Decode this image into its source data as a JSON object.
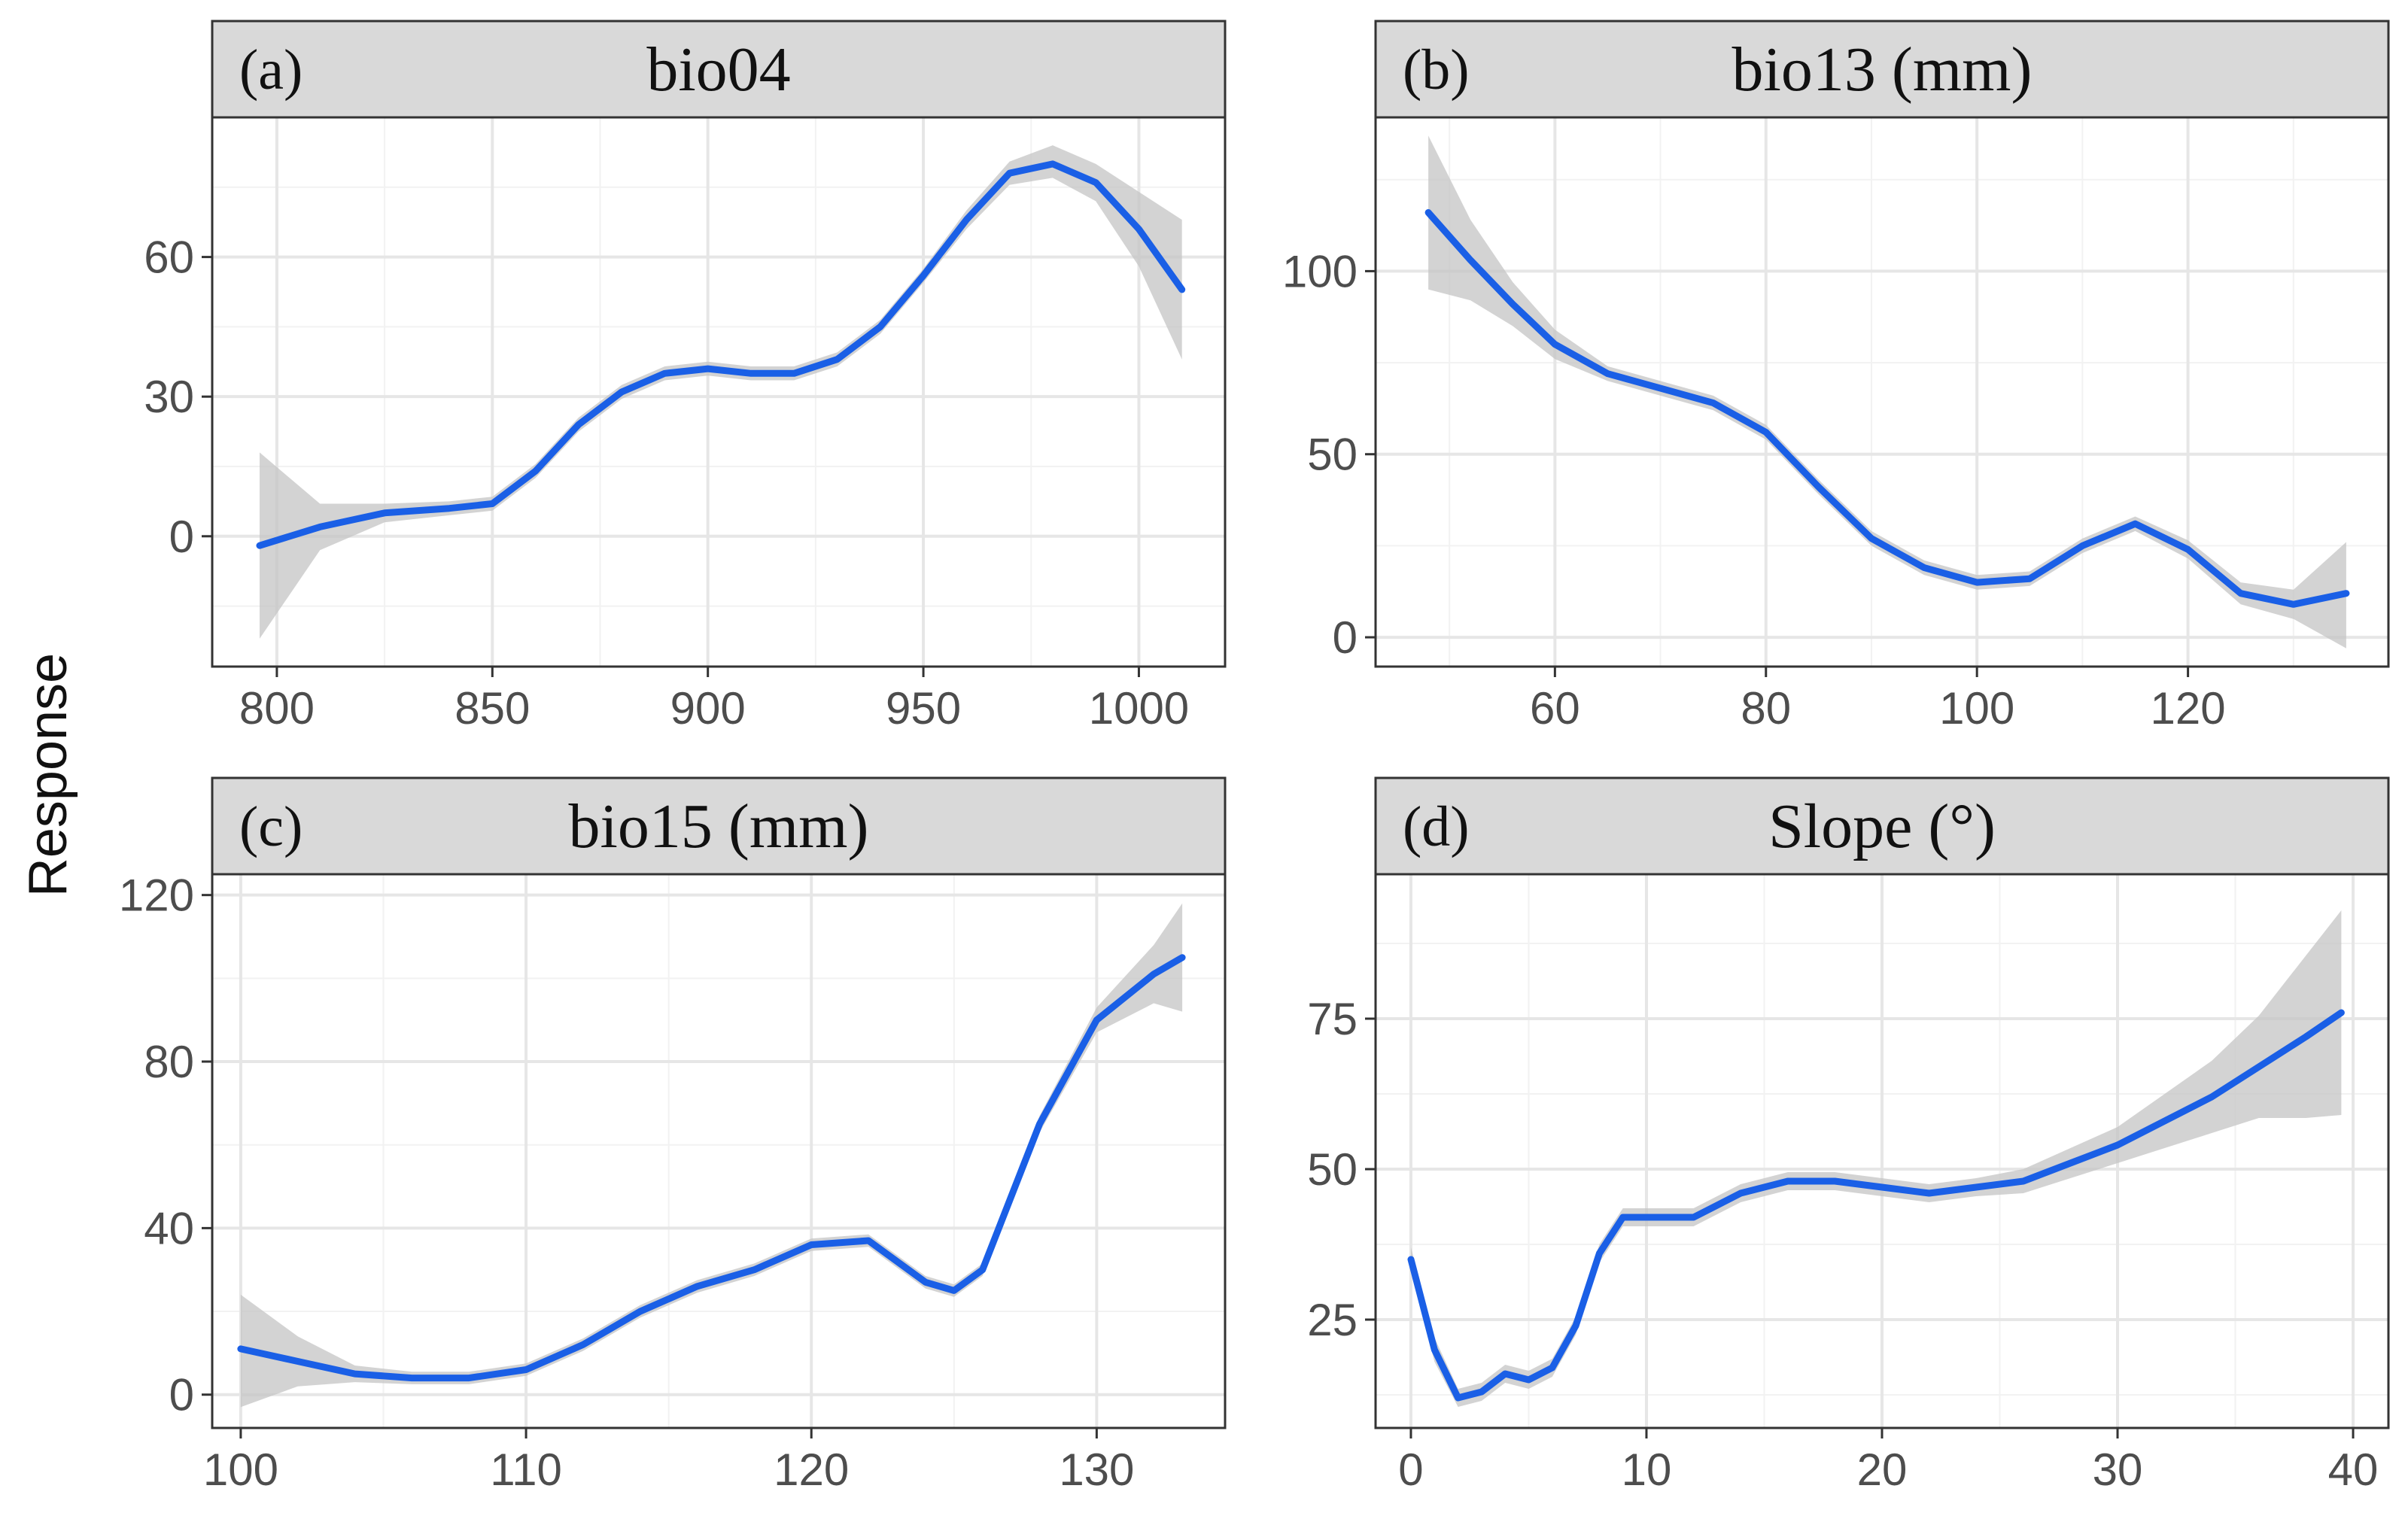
{
  "ylabel": "Response",
  "colors": {
    "line": "#1a5fe6",
    "ribbon": "#c4c4c4",
    "strip": "#d9d9d9",
    "grid_major": "#e6e6e6",
    "grid_minor": "#f2f2f2",
    "border": "#333333"
  },
  "chart_data": [
    {
      "type": "line",
      "panel": "(a)",
      "title": "bio04",
      "xlabel": "",
      "ylabel": "Response",
      "xlim": [
        785,
        1020
      ],
      "ylim": [
        -28,
        90
      ],
      "xticks": [
        800,
        850,
        900,
        950,
        1000
      ],
      "yticks": [
        0,
        30,
        60
      ],
      "grid": true,
      "series": [
        {
          "x": [
            796,
            810,
            825,
            840,
            850,
            860,
            870,
            880,
            890,
            900,
            910,
            920,
            930,
            940,
            950,
            960,
            970,
            980,
            990,
            1000,
            1010
          ],
          "y": [
            -2,
            2,
            5,
            6,
            7,
            14,
            24,
            31,
            35,
            36,
            35,
            35,
            38,
            45,
            56,
            68,
            78,
            80,
            76,
            66,
            53
          ],
          "lower": [
            -22,
            -3,
            3,
            4.5,
            5.5,
            12.5,
            22.5,
            29.5,
            33.5,
            34.5,
            33.5,
            33.5,
            36.5,
            43.5,
            54.5,
            66,
            75.5,
            77,
            72,
            58,
            38
          ],
          "upper": [
            18,
            7,
            7,
            7.5,
            8.5,
            15.5,
            25.5,
            32.5,
            36.5,
            37.5,
            36.5,
            36.5,
            39.5,
            46.5,
            57.5,
            70,
            80.5,
            84,
            80,
            74,
            68
          ]
        }
      ]
    },
    {
      "type": "line",
      "panel": "(b)",
      "title": "bio13 (mm)",
      "xlabel": "",
      "ylabel": "",
      "xlim": [
        43,
        139
      ],
      "ylim": [
        -8,
        142
      ],
      "xticks": [
        60,
        80,
        100,
        120
      ],
      "yticks": [
        0,
        50,
        100
      ],
      "grid": true,
      "series": [
        {
          "x": [
            48,
            52,
            56,
            60,
            65,
            70,
            75,
            80,
            85,
            90,
            95,
            100,
            105,
            110,
            115,
            120,
            125,
            130,
            135
          ],
          "y": [
            116,
            103,
            91,
            80,
            72,
            68,
            64,
            56,
            41,
            27,
            19,
            15,
            16,
            25,
            31,
            24,
            12,
            9,
            12
          ],
          "lower": [
            95,
            92,
            85,
            76,
            70,
            66,
            62,
            54,
            39,
            25,
            17,
            13,
            14,
            23,
            29,
            21.5,
            9,
            5,
            -3
          ],
          "upper": [
            137,
            114,
            97,
            84,
            74,
            70,
            66,
            58,
            43,
            29,
            21,
            17,
            18,
            27,
            33,
            26.5,
            15,
            13,
            26
          ]
        }
      ]
    },
    {
      "type": "line",
      "panel": "(c)",
      "title": "bio15 (mm)",
      "xlabel": "",
      "ylabel": "",
      "xlim": [
        99,
        134.5
      ],
      "ylim": [
        -8,
        125
      ],
      "xticks": [
        100,
        110,
        120,
        130
      ],
      "yticks": [
        0,
        40,
        80,
        120
      ],
      "grid": true,
      "series": [
        {
          "x": [
            100,
            102,
            104,
            106,
            108,
            110,
            112,
            114,
            116,
            118,
            120,
            122,
            124,
            125,
            126,
            128,
            130,
            132,
            133
          ],
          "y": [
            11,
            8,
            5,
            4,
            4,
            6,
            12,
            20,
            26,
            30,
            36,
            37,
            27,
            25,
            30,
            65,
            90,
            101,
            105
          ],
          "lower": [
            -3,
            2,
            3,
            2.5,
            2.5,
            4.5,
            10.5,
            18.5,
            24.5,
            28.5,
            34.5,
            35.5,
            25.5,
            23.5,
            28.5,
            63,
            87,
            94,
            92
          ],
          "upper": [
            24,
            14,
            7,
            5.5,
            5.5,
            7.5,
            13.5,
            21.5,
            27.5,
            31.5,
            37.5,
            38.5,
            28.5,
            26.5,
            31.5,
            67,
            93,
            108,
            118
          ]
        }
      ]
    },
    {
      "type": "line",
      "panel": "(d)",
      "title": "Slope (°)",
      "xlabel": "",
      "ylabel": "",
      "xlim": [
        -1.5,
        41.5
      ],
      "ylim": [
        7,
        99
      ],
      "xticks": [
        0,
        10,
        20,
        30,
        40
      ],
      "yticks": [
        25,
        50,
        75
      ],
      "grid": true,
      "series": [
        {
          "x": [
            0,
            1,
            2,
            3,
            4,
            5,
            6,
            7,
            8,
            9,
            10,
            12,
            14,
            16,
            18,
            20,
            22,
            24,
            26,
            28,
            30,
            32,
            34,
            36,
            38,
            39.5
          ],
          "y": [
            35,
            20,
            12,
            13,
            16,
            15,
            17,
            24,
            36,
            42,
            42,
            42,
            46,
            48,
            48,
            47,
            46,
            47,
            48,
            51,
            54,
            58,
            62,
            67,
            72,
            76
          ],
          "lower": [
            33,
            18,
            10.5,
            11.5,
            14.5,
            13.5,
            15.5,
            22.5,
            34.5,
            40.5,
            40.5,
            40.5,
            44.5,
            46.5,
            46.5,
            45.5,
            44.5,
            45.5,
            46,
            48.5,
            51,
            53.5,
            56,
            58.5,
            58.5,
            59
          ],
          "upper": [
            37,
            22,
            13.5,
            14.5,
            17.5,
            16.5,
            18.5,
            25.5,
            37.5,
            43.5,
            43.5,
            43.5,
            47.5,
            49.5,
            49.5,
            48.5,
            47.5,
            48.5,
            50,
            53.5,
            57,
            62.5,
            68,
            75.5,
            85.5,
            93
          ]
        }
      ]
    }
  ]
}
